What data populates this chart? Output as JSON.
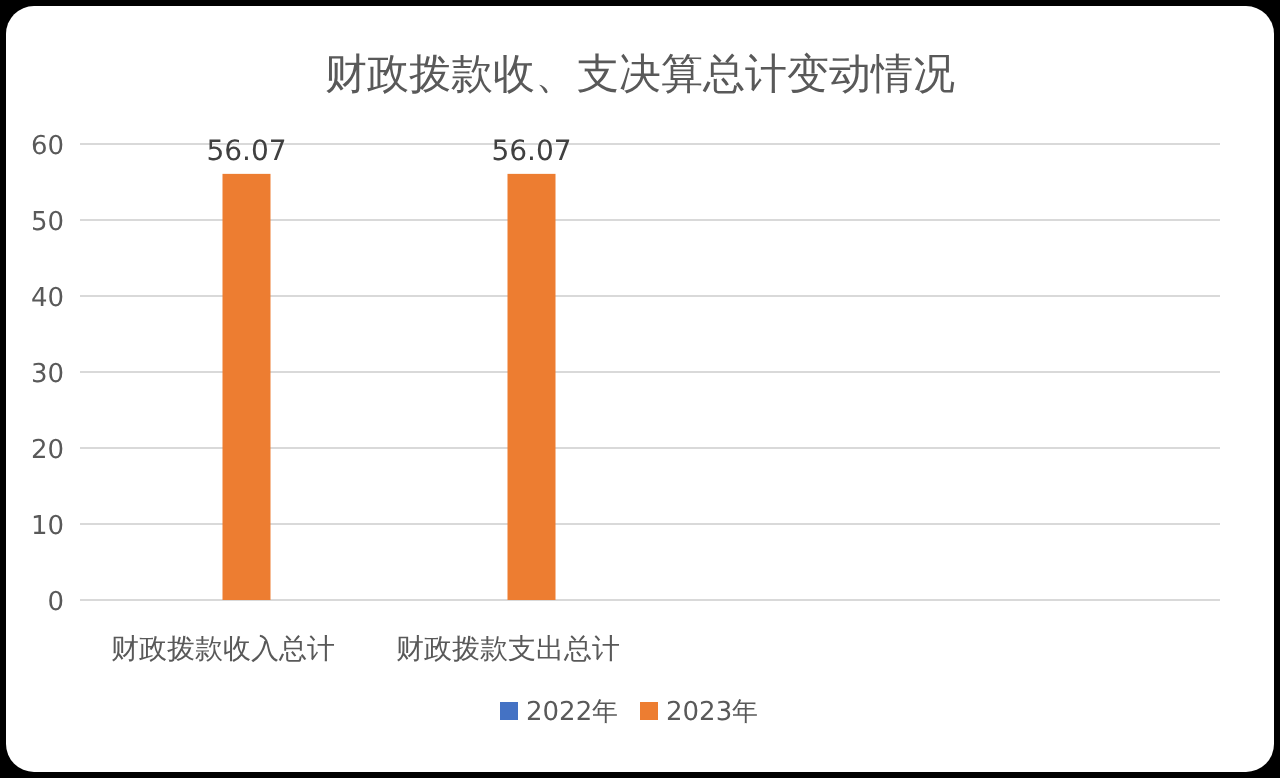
{
  "chart_data": {
    "type": "bar",
    "title": "财政拨款收、支决算总计变动情况",
    "categories": [
      "财政拨款收入总计",
      "财政拨款支出总计",
      null,
      null
    ],
    "series": [
      {
        "name": "2022年",
        "color": "#4472c4",
        "values": [
          null,
          null,
          null,
          null
        ]
      },
      {
        "name": "2023年",
        "color": "#ed7d31",
        "values": [
          56.07,
          56.07,
          null,
          null
        ]
      }
    ],
    "ylim": [
      0,
      60
    ],
    "yticks": [
      0,
      10,
      20,
      30,
      40,
      50,
      60
    ],
    "grid": "y",
    "legend": "bottom",
    "data_labels": true
  }
}
